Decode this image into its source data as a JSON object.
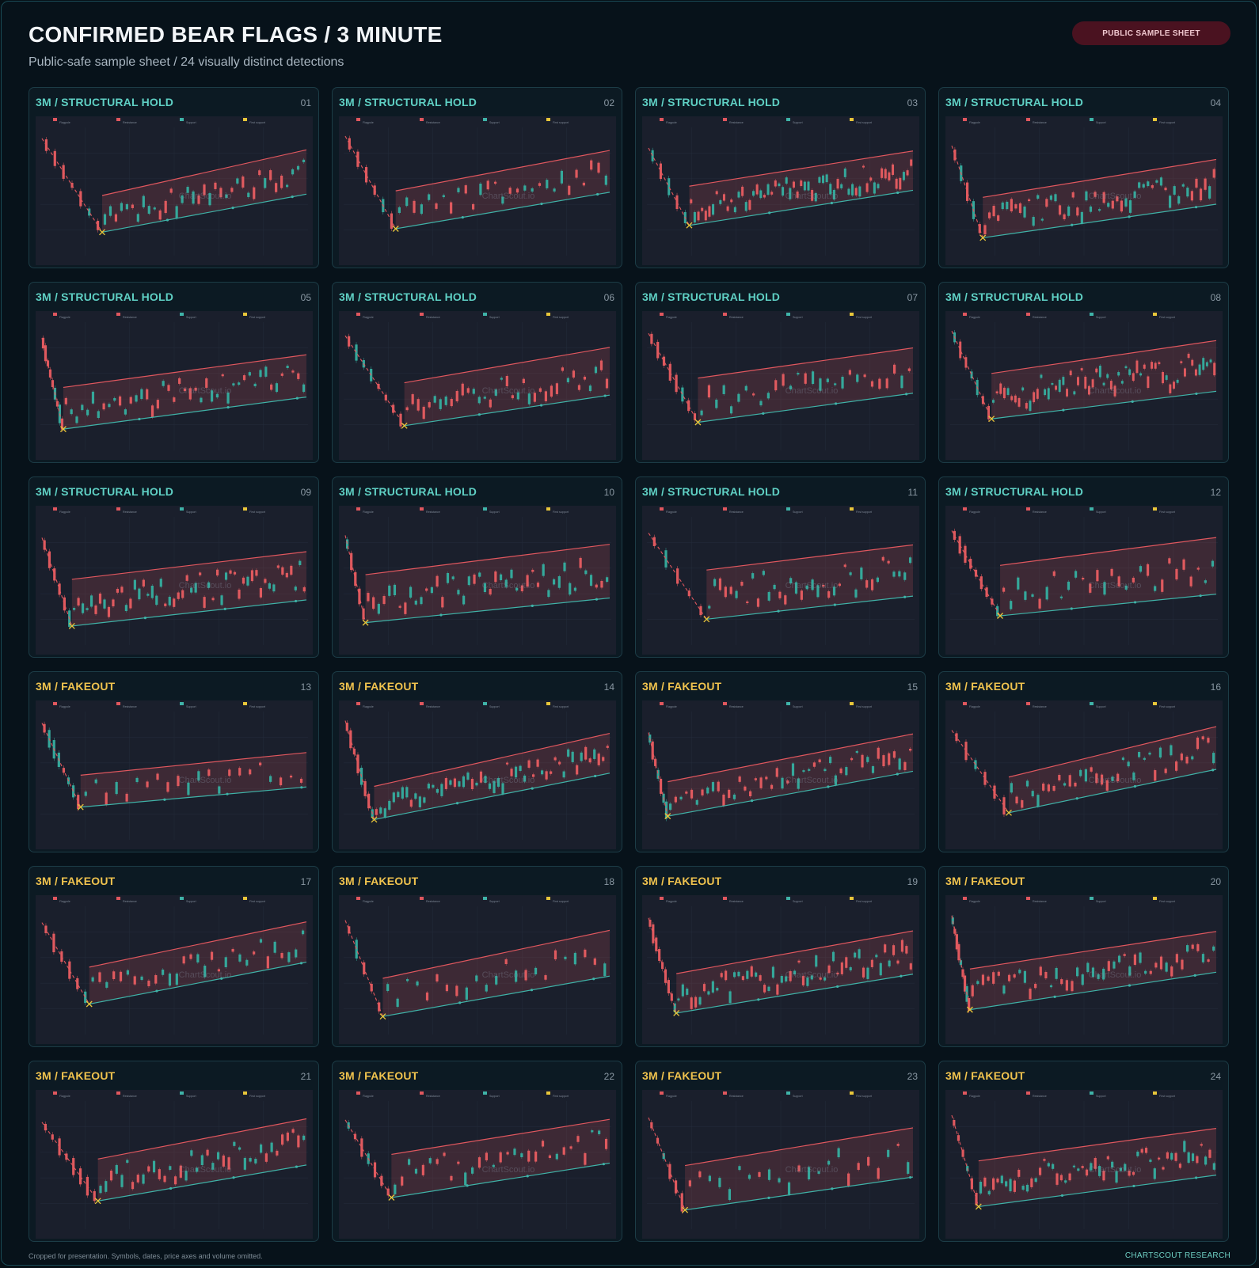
{
  "header": {
    "title": "CONFIRMED BEAR FLAGS / 3 MINUTE",
    "subtitle": "Public-safe sample sheet / 24 visually distinct detections",
    "badge": "PUBLIC SAMPLE SHEET"
  },
  "footer": {
    "note": "Cropped for presentation. Symbols, dates, price axes and volume omitted.",
    "brand": "CHARTSCOUT RESEARCH"
  },
  "colors": {
    "background": "#061016",
    "card": "#0c1a23",
    "hold_label": "#5fd0c4",
    "fakeout_label": "#f0c34e",
    "resistance": "#e0575e",
    "support": "#3fb3a8",
    "first_support": "#e8c63a",
    "bull_candle": "#35a89b",
    "bear_candle": "#e05a5f"
  },
  "watermark": "ChartScout.io",
  "legend": [
    "Flagpole",
    "Resistance",
    "Support",
    "First support"
  ],
  "chart_data": [
    {
      "type": "candlestick",
      "label": "3M / STRUCTURAL HOLD",
      "number": "01"
    },
    {
      "type": "candlestick",
      "label": "3M / STRUCTURAL HOLD",
      "number": "02"
    },
    {
      "type": "candlestick",
      "label": "3M / STRUCTURAL HOLD",
      "number": "03"
    },
    {
      "type": "candlestick",
      "label": "3M / STRUCTURAL HOLD",
      "number": "04"
    },
    {
      "type": "candlestick",
      "label": "3M / STRUCTURAL HOLD",
      "number": "05"
    },
    {
      "type": "candlestick",
      "label": "3M / STRUCTURAL HOLD",
      "number": "06"
    },
    {
      "type": "candlestick",
      "label": "3M / STRUCTURAL HOLD",
      "number": "07"
    },
    {
      "type": "candlestick",
      "label": "3M / STRUCTURAL HOLD",
      "number": "08"
    },
    {
      "type": "candlestick",
      "label": "3M / STRUCTURAL HOLD",
      "number": "09"
    },
    {
      "type": "candlestick",
      "label": "3M / STRUCTURAL HOLD",
      "number": "10"
    },
    {
      "type": "candlestick",
      "label": "3M / STRUCTURAL HOLD",
      "number": "11"
    },
    {
      "type": "candlestick",
      "label": "3M / STRUCTURAL HOLD",
      "number": "12"
    },
    {
      "type": "candlestick",
      "label": "3M / FAKEOUT",
      "number": "13"
    },
    {
      "type": "candlestick",
      "label": "3M / FAKEOUT",
      "number": "14"
    },
    {
      "type": "candlestick",
      "label": "3M / FAKEOUT",
      "number": "15"
    },
    {
      "type": "candlestick",
      "label": "3M / FAKEOUT",
      "number": "16"
    },
    {
      "type": "candlestick",
      "label": "3M / FAKEOUT",
      "number": "17"
    },
    {
      "type": "candlestick",
      "label": "3M / FAKEOUT",
      "number": "18"
    },
    {
      "type": "candlestick",
      "label": "3M / FAKEOUT",
      "number": "19"
    },
    {
      "type": "candlestick",
      "label": "3M / FAKEOUT",
      "number": "20"
    },
    {
      "type": "candlestick",
      "label": "3M / FAKEOUT",
      "number": "21"
    },
    {
      "type": "candlestick",
      "label": "3M / FAKEOUT",
      "number": "22"
    },
    {
      "type": "candlestick",
      "label": "3M / FAKEOUT",
      "number": "23"
    },
    {
      "type": "candlestick",
      "label": "3M / FAKEOUT",
      "number": "24"
    }
  ]
}
